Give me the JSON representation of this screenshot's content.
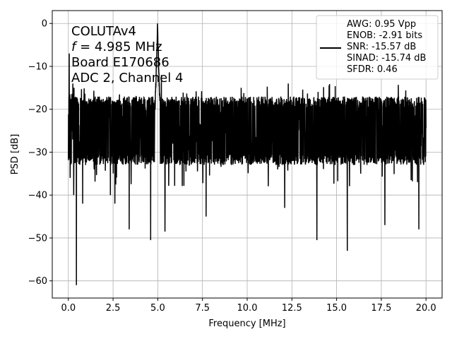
{
  "chart_data": {
    "type": "line",
    "xlabel": "Frequency [MHz]",
    "ylabel": "PSD [dB]",
    "xlim": [
      -0.9,
      20.9
    ],
    "ylim": [
      -64,
      3
    ],
    "x_ticks": [
      0.0,
      2.5,
      5.0,
      7.5,
      10.0,
      12.5,
      15.0,
      17.5,
      20.0
    ],
    "x_tick_labels": [
      "0.0",
      "2.5",
      "5.0",
      "7.5",
      "10.0",
      "12.5",
      "15.0",
      "17.5",
      "20.0"
    ],
    "y_ticks": [
      0,
      -10,
      -20,
      -30,
      -40,
      -50,
      -60
    ],
    "y_tick_labels": [
      "0",
      "−10",
      "−20",
      "−30",
      "−40",
      "−50",
      "−60"
    ],
    "grid": true,
    "annotation": {
      "line1": "COLUTAv4",
      "line2_var": "f",
      "line2_rest": " = 4.985 MHz",
      "line3": "Board E170686",
      "line4": "ADC 2, Channel 4"
    },
    "legend": {
      "placement": "top-right",
      "lines": [
        "AWG: 0.95 Vpp",
        "ENOB: -2.91 bits",
        "SNR: -15.57 dB",
        "SINAD: -15.74 dB",
        "SFDR: 0.46"
      ]
    },
    "series": [
      {
        "color": "#000000",
        "x_start": 0.0,
        "x_end": 20.0,
        "noise_floor_mean": -25,
        "noise_floor_band": [
          -33,
          -17
        ],
        "peak": {
          "x": 4.985,
          "y": 0
        },
        "dips": [
          {
            "x": 0.1,
            "y": -36
          },
          {
            "x": 0.3,
            "y": -40
          },
          {
            "x": 0.45,
            "y": -61
          },
          {
            "x": 0.8,
            "y": -42
          },
          {
            "x": 2.35,
            "y": -40
          },
          {
            "x": 2.6,
            "y": -42
          },
          {
            "x": 3.4,
            "y": -48
          },
          {
            "x": 4.6,
            "y": -50.5
          },
          {
            "x": 5.4,
            "y": -48.5
          },
          {
            "x": 7.7,
            "y": -45
          },
          {
            "x": 12.1,
            "y": -43
          },
          {
            "x": 13.9,
            "y": -50.5
          },
          {
            "x": 15.6,
            "y": -53
          },
          {
            "x": 17.7,
            "y": -47
          },
          {
            "x": 19.6,
            "y": -48
          }
        ],
        "spikes": [
          {
            "x": 0.05,
            "y": -7
          },
          {
            "x": 0.25,
            "y": -14
          },
          {
            "x": 5.2,
            "y": -12
          },
          {
            "x": 12.3,
            "y": -14
          }
        ]
      }
    ]
  }
}
